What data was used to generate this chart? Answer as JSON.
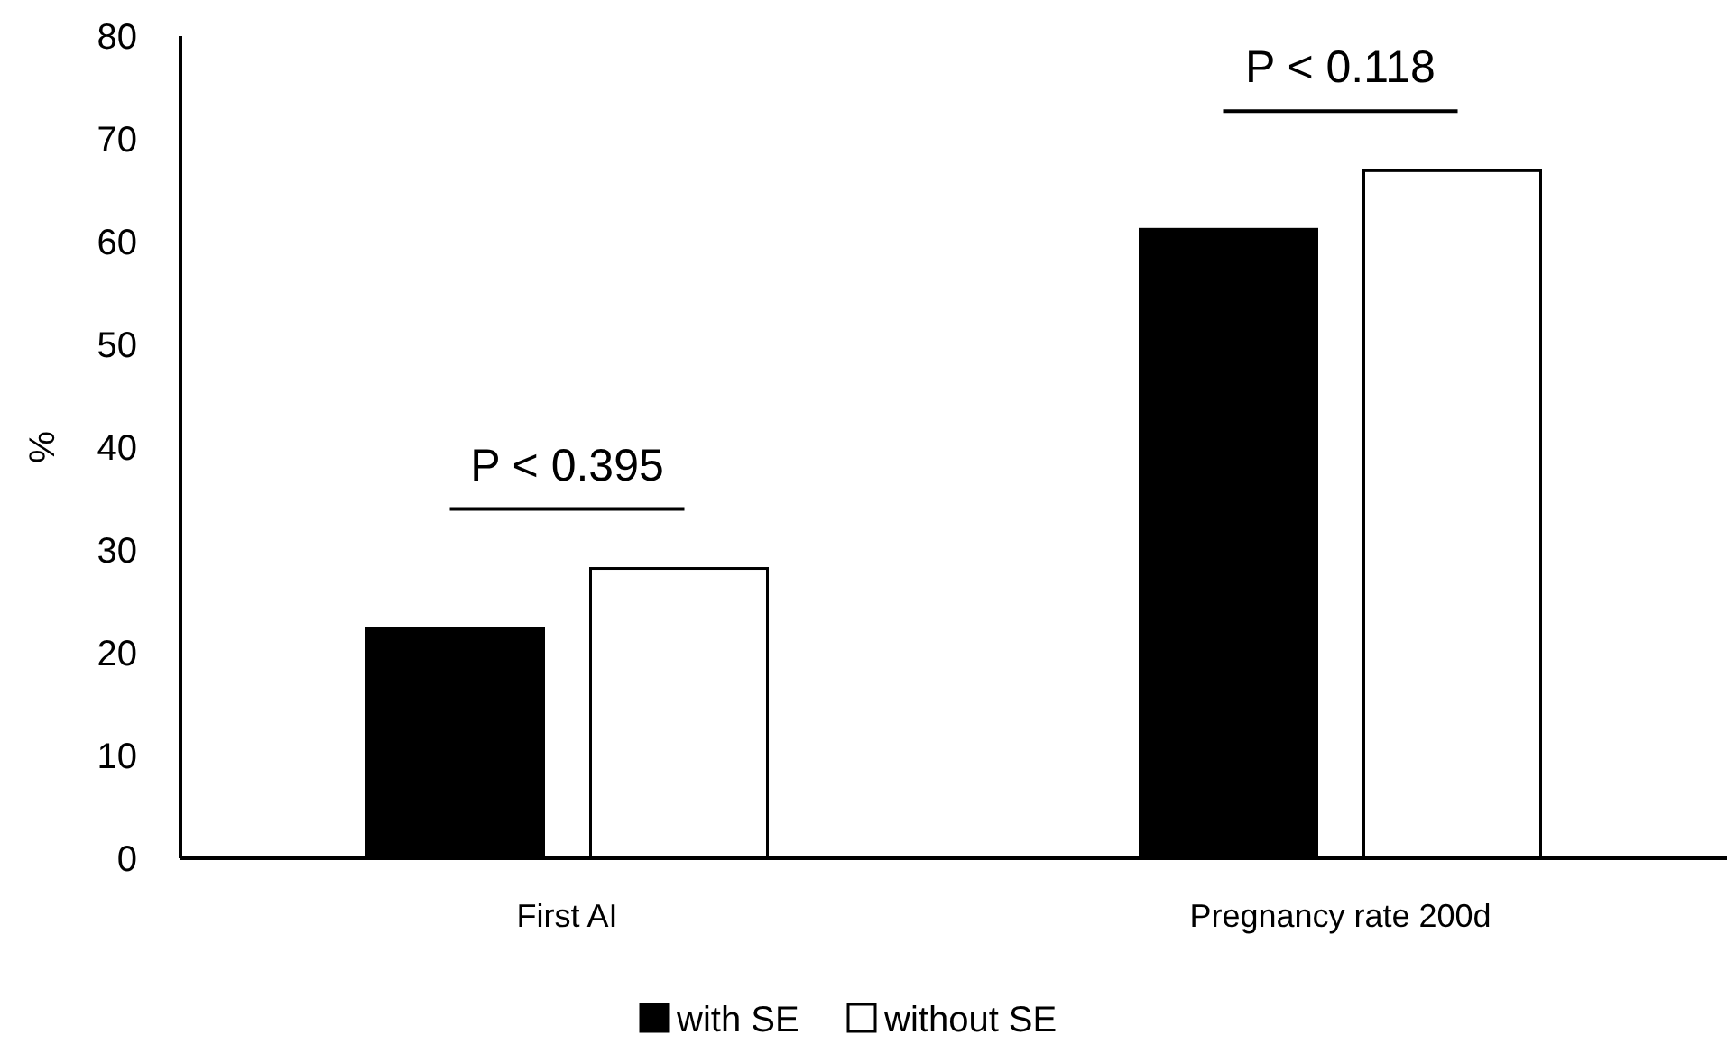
{
  "chart_data": {
    "type": "bar",
    "ylabel": "%",
    "categories": [
      "First AI",
      "Pregnancy rate 200d"
    ],
    "series": [
      {
        "name": "with SE",
        "color": "#000000",
        "values": [
          22.4,
          61.2
        ]
      },
      {
        "name": "without SE",
        "color": "#ffffff",
        "values": [
          28.2,
          66.9
        ]
      }
    ],
    "ylim": [
      0,
      80
    ],
    "yticks": [
      0,
      10,
      20,
      30,
      40,
      50,
      60,
      70,
      80
    ],
    "grid": false,
    "legend": "bottom",
    "annotations": [
      "P < 0.395",
      "P < 0.118"
    ]
  }
}
